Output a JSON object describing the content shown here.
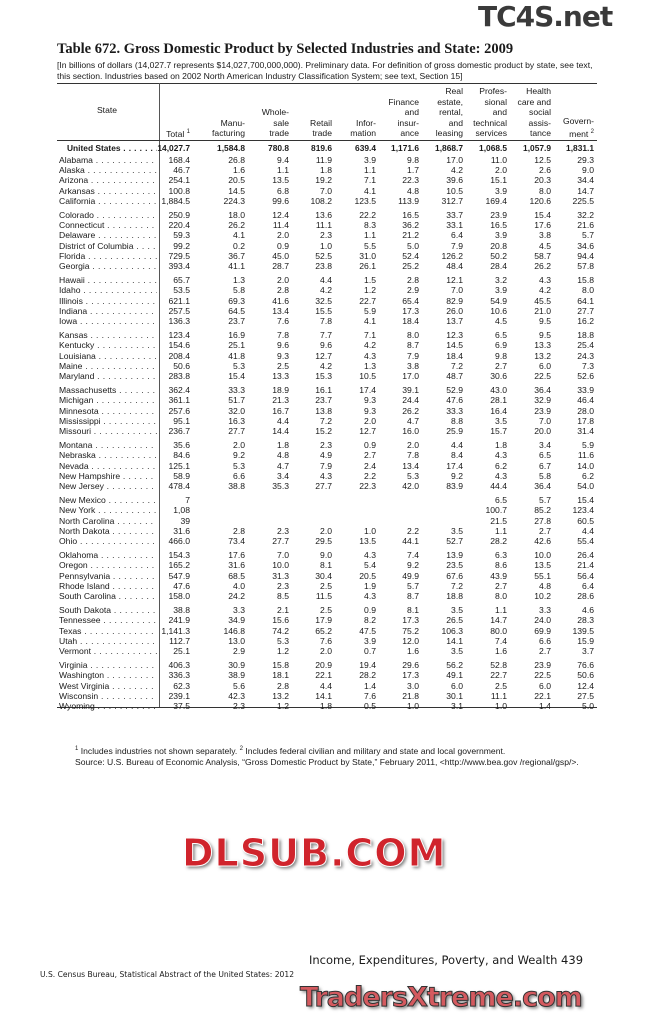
{
  "title": "Table 672. Gross Domestic Product by Selected Industries and State: 2009",
  "headnote": "[In billions of dollars (14,027.7 represents $14,027,700,000,000). Preliminary data. For definition of gross domestic product by state, see text, this section. Industries based on 2002 North American Industry Classification System; see text, Section 15]",
  "columns": {
    "state": "State",
    "headers": [
      {
        "lines": [
          "Total"
        ],
        "sup": "1"
      },
      {
        "lines": [
          "Manu-",
          "facturing"
        ]
      },
      {
        "lines": [
          "Whole-",
          "sale",
          "trade"
        ]
      },
      {
        "lines": [
          "Retail",
          "trade"
        ]
      },
      {
        "lines": [
          "Infor-",
          "mation"
        ]
      },
      {
        "lines": [
          "Finance",
          "and",
          "insur-",
          "ance"
        ]
      },
      {
        "lines": [
          "Real",
          "estate,",
          "rental,",
          "and",
          "leasing"
        ]
      },
      {
        "lines": [
          "Profes-",
          "sional",
          "and",
          "technical",
          "services"
        ]
      },
      {
        "lines": [
          "Health",
          "care and",
          "social",
          "assis-",
          "tance"
        ]
      },
      {
        "lines": [
          "Govern-",
          "ment"
        ],
        "sup": "2"
      }
    ]
  },
  "us_row": {
    "state": "United States",
    "values": [
      "14,027.7",
      "1,584.8",
      "780.8",
      "819.6",
      "639.4",
      "1,171.6",
      "1,868.7",
      "1,068.5",
      "1,057.9",
      "1,831.1"
    ]
  },
  "groups": [
    [
      {
        "state": "Alabama",
        "values": [
          "168.4",
          "26.8",
          "9.4",
          "11.9",
          "3.9",
          "9.8",
          "17.0",
          "11.0",
          "12.5",
          "29.3"
        ]
      },
      {
        "state": "Alaska",
        "values": [
          "46.7",
          "1.6",
          "1.1",
          "1.8",
          "1.1",
          "1.7",
          "4.2",
          "2.0",
          "2.6",
          "9.0"
        ]
      },
      {
        "state": "Arizona",
        "values": [
          "254.1",
          "20.5",
          "13.5",
          "19.2",
          "7.1",
          "22.3",
          "39.6",
          "15.1",
          "20.3",
          "34.4"
        ]
      },
      {
        "state": "Arkansas",
        "values": [
          "100.8",
          "14.5",
          "6.8",
          "7.0",
          "4.1",
          "4.8",
          "10.5",
          "3.9",
          "8.0",
          "14.7"
        ]
      },
      {
        "state": "California",
        "values": [
          "1,884.5",
          "224.3",
          "99.6",
          "108.2",
          "123.5",
          "113.9",
          "312.7",
          "169.4",
          "120.6",
          "225.5"
        ]
      }
    ],
    [
      {
        "state": "Colorado",
        "values": [
          "250.9",
          "18.0",
          "12.4",
          "13.6",
          "22.2",
          "16.5",
          "33.7",
          "23.9",
          "15.4",
          "32.2"
        ]
      },
      {
        "state": "Connecticut",
        "values": [
          "220.4",
          "26.2",
          "11.4",
          "11.1",
          "8.3",
          "36.2",
          "33.1",
          "16.5",
          "17.6",
          "21.6"
        ]
      },
      {
        "state": "Delaware",
        "values": [
          "59.3",
          "4.1",
          "2.0",
          "2.3",
          "1.1",
          "21.2",
          "6.4",
          "3.9",
          "3.8",
          "5.7"
        ]
      },
      {
        "state": "District of Columbia",
        "values": [
          "99.2",
          "0.2",
          "0.9",
          "1.0",
          "5.5",
          "5.0",
          "7.9",
          "20.8",
          "4.5",
          "34.6"
        ]
      },
      {
        "state": "Florida",
        "values": [
          "729.5",
          "36.7",
          "45.0",
          "52.5",
          "31.0",
          "52.4",
          "126.2",
          "50.2",
          "58.7",
          "94.4"
        ]
      },
      {
        "state": "Georgia",
        "values": [
          "393.4",
          "41.1",
          "28.7",
          "23.8",
          "26.1",
          "25.2",
          "48.4",
          "28.4",
          "26.2",
          "57.8"
        ]
      }
    ],
    [
      {
        "state": "Hawaii",
        "values": [
          "65.7",
          "1.3",
          "2.0",
          "4.4",
          "1.5",
          "2.8",
          "12.1",
          "3.2",
          "4.3",
          "15.8"
        ]
      },
      {
        "state": "Idaho",
        "values": [
          "53.5",
          "5.8",
          "2.8",
          "4.2",
          "1.2",
          "2.9",
          "7.0",
          "3.9",
          "4.2",
          "8.0"
        ]
      },
      {
        "state": "Illinois",
        "values": [
          "621.1",
          "69.3",
          "41.6",
          "32.5",
          "22.7",
          "65.4",
          "82.9",
          "54.9",
          "45.5",
          "64.1"
        ]
      },
      {
        "state": "Indiana",
        "values": [
          "257.5",
          "64.5",
          "13.4",
          "15.5",
          "5.9",
          "17.3",
          "26.0",
          "10.6",
          "21.0",
          "27.7"
        ]
      },
      {
        "state": "Iowa",
        "values": [
          "136.3",
          "23.7",
          "7.6",
          "7.8",
          "4.1",
          "18.4",
          "13.7",
          "4.5",
          "9.5",
          "16.2"
        ]
      }
    ],
    [
      {
        "state": "Kansas",
        "values": [
          "123.4",
          "16.9",
          "7.8",
          "7.7",
          "7.1",
          "8.0",
          "12.3",
          "6.5",
          "9.5",
          "18.8"
        ]
      },
      {
        "state": "Kentucky",
        "values": [
          "154.6",
          "25.1",
          "9.6",
          "9.6",
          "4.2",
          "8.7",
          "14.5",
          "6.9",
          "13.3",
          "25.4"
        ]
      },
      {
        "state": "Louisiana",
        "values": [
          "208.4",
          "41.8",
          "9.3",
          "12.7",
          "4.3",
          "7.9",
          "18.4",
          "9.8",
          "13.2",
          "24.3"
        ]
      },
      {
        "state": "Maine",
        "values": [
          "50.6",
          "5.3",
          "2.5",
          "4.2",
          "1.3",
          "3.8",
          "7.2",
          "2.7",
          "6.0",
          "7.3"
        ]
      },
      {
        "state": "Maryland",
        "values": [
          "283.8",
          "15.4",
          "13.3",
          "15.3",
          "10.5",
          "17.0",
          "48.7",
          "30.6",
          "22.5",
          "52.6"
        ]
      }
    ],
    [
      {
        "state": "Massachusetts",
        "values": [
          "362.4",
          "33.3",
          "18.9",
          "16.1",
          "17.4",
          "39.1",
          "52.9",
          "43.0",
          "36.4",
          "33.9"
        ]
      },
      {
        "state": "Michigan",
        "values": [
          "361.1",
          "51.7",
          "21.3",
          "23.7",
          "9.3",
          "24.4",
          "47.6",
          "28.1",
          "32.9",
          "46.4"
        ]
      },
      {
        "state": "Minnesota",
        "values": [
          "257.6",
          "32.0",
          "16.7",
          "13.8",
          "9.3",
          "26.2",
          "33.3",
          "16.4",
          "23.9",
          "28.0"
        ]
      },
      {
        "state": "Mississippi",
        "values": [
          "95.1",
          "16.3",
          "4.4",
          "7.2",
          "2.0",
          "4.7",
          "8.8",
          "3.5",
          "7.0",
          "17.8"
        ]
      },
      {
        "state": "Missouri",
        "values": [
          "236.7",
          "27.7",
          "14.4",
          "15.2",
          "12.7",
          "16.0",
          "25.9",
          "15.7",
          "20.0",
          "31.4"
        ]
      }
    ],
    [
      {
        "state": "Montana",
        "values": [
          "35.6",
          "2.0",
          "1.8",
          "2.3",
          "0.9",
          "2.0",
          "4.4",
          "1.8",
          "3.4",
          "5.9"
        ]
      },
      {
        "state": "Nebraska",
        "values": [
          "84.6",
          "9.2",
          "4.8",
          "4.9",
          "2.7",
          "7.8",
          "8.4",
          "4.3",
          "6.5",
          "11.6"
        ]
      },
      {
        "state": "Nevada",
        "values": [
          "125.1",
          "5.3",
          "4.7",
          "7.9",
          "2.4",
          "13.4",
          "17.4",
          "6.2",
          "6.7",
          "14.0"
        ]
      },
      {
        "state": "New Hampshire",
        "values": [
          "58.9",
          "6.6",
          "3.4",
          "4.3",
          "2.2",
          "5.3",
          "9.2",
          "4.3",
          "5.8",
          "6.2"
        ]
      },
      {
        "state": "New Jersey",
        "values": [
          "478.4",
          "38.8",
          "35.3",
          "27.7",
          "22.3",
          "42.0",
          "83.9",
          "44.4",
          "36.4",
          "54.0"
        ]
      }
    ],
    [
      {
        "state": "New Mexico",
        "values": [
          "7",
          "",
          "",
          "",
          "",
          "",
          "",
          "6.5",
          "5.7",
          "15.4"
        ]
      },
      {
        "state": "New York",
        "values": [
          "1,08",
          "",
          "",
          "",
          "",
          "",
          "",
          "100.7",
          "85.2",
          "123.4"
        ]
      },
      {
        "state": "North Carolina",
        "values": [
          "39",
          "",
          "",
          "",
          "",
          "",
          "",
          "21.5",
          "27.8",
          "60.5"
        ]
      },
      {
        "state": "North Dakota",
        "values": [
          "31.6",
          "2.8",
          "2.3",
          "2.0",
          "1.0",
          "2.2",
          "3.5",
          "1.1",
          "2.7",
          "4.4"
        ]
      },
      {
        "state": "Ohio",
        "values": [
          "466.0",
          "73.4",
          "27.7",
          "29.5",
          "13.5",
          "44.1",
          "52.7",
          "28.2",
          "42.6",
          "55.4"
        ]
      }
    ],
    [
      {
        "state": "Oklahoma",
        "values": [
          "154.3",
          "17.6",
          "7.0",
          "9.0",
          "4.3",
          "7.4",
          "13.9",
          "6.3",
          "10.0",
          "26.4"
        ]
      },
      {
        "state": "Oregon",
        "values": [
          "165.2",
          "31.6",
          "10.0",
          "8.1",
          "5.4",
          "9.2",
          "23.5",
          "8.6",
          "13.5",
          "21.4"
        ]
      },
      {
        "state": "Pennsylvania",
        "values": [
          "547.9",
          "68.5",
          "31.3",
          "30.4",
          "20.5",
          "49.9",
          "67.6",
          "43.9",
          "55.1",
          "56.4"
        ]
      },
      {
        "state": "Rhode Island",
        "values": [
          "47.6",
          "4.0",
          "2.3",
          "2.5",
          "1.9",
          "5.7",
          "7.2",
          "2.7",
          "4.8",
          "6.4"
        ]
      },
      {
        "state": "South Carolina",
        "values": [
          "158.0",
          "24.2",
          "8.5",
          "11.5",
          "4.3",
          "8.7",
          "18.8",
          "8.0",
          "10.2",
          "28.6"
        ]
      }
    ],
    [
      {
        "state": "South Dakota",
        "values": [
          "38.8",
          "3.3",
          "2.1",
          "2.5",
          "0.9",
          "8.1",
          "3.5",
          "1.1",
          "3.3",
          "4.6"
        ]
      },
      {
        "state": "Tennessee",
        "values": [
          "241.9",
          "34.9",
          "15.6",
          "17.9",
          "8.2",
          "17.3",
          "26.5",
          "14.7",
          "24.0",
          "28.3"
        ]
      },
      {
        "state": "Texas",
        "values": [
          "1,141.3",
          "146.8",
          "74.2",
          "65.2",
          "47.5",
          "75.2",
          "106.3",
          "80.0",
          "69.9",
          "139.5"
        ]
      },
      {
        "state": "Utah",
        "values": [
          "112.7",
          "13.0",
          "5.3",
          "7.6",
          "3.9",
          "12.0",
          "14.1",
          "7.4",
          "6.6",
          "15.9"
        ]
      },
      {
        "state": "Vermont",
        "values": [
          "25.1",
          "2.9",
          "1.2",
          "2.0",
          "0.7",
          "1.6",
          "3.5",
          "1.6",
          "2.7",
          "3.7"
        ]
      }
    ],
    [
      {
        "state": "Virginia",
        "values": [
          "406.3",
          "30.9",
          "15.8",
          "20.9",
          "19.4",
          "29.6",
          "56.2",
          "52.8",
          "23.9",
          "76.6"
        ]
      },
      {
        "state": "Washington",
        "values": [
          "336.3",
          "38.9",
          "18.1",
          "22.1",
          "28.2",
          "17.3",
          "49.1",
          "22.7",
          "22.5",
          "50.6"
        ]
      },
      {
        "state": "West Virginia",
        "values": [
          "62.3",
          "5.6",
          "2.8",
          "4.4",
          "1.4",
          "3.0",
          "6.0",
          "2.5",
          "6.0",
          "12.4"
        ]
      },
      {
        "state": "Wisconsin",
        "values": [
          "239.1",
          "42.3",
          "13.2",
          "14.1",
          "7.6",
          "21.8",
          "30.1",
          "11.1",
          "22.1",
          "27.5"
        ]
      },
      {
        "state": "Wyoming",
        "values": [
          "37.5",
          "2.3",
          "1.2",
          "1.8",
          "0.5",
          "1.0",
          "3.1",
          "1.0",
          "1.4",
          "5.0"
        ]
      }
    ]
  ],
  "footnotes": {
    "note1_sup": "1",
    "note1": " Includes industries not shown separately. ",
    "note2_sup": "2",
    "note2": " Includes federal civilian and military and state and local government.",
    "source": "Source: U.S. Bureau of Economic Analysis, “Gross Domestic Product by State,” February 2011, <http://www.bea.gov /regional/gsp/>."
  },
  "page_footer": {
    "running_head": "Income, Expenditures, Poverty, and Wealth  439",
    "publication": "U.S. Census Bureau, Statistical Abstract of the United States: 2012"
  },
  "watermarks": {
    "top": "TC4S.net",
    "middle": "DLSUB.COM",
    "bottom": "TradersXtreme.com"
  }
}
